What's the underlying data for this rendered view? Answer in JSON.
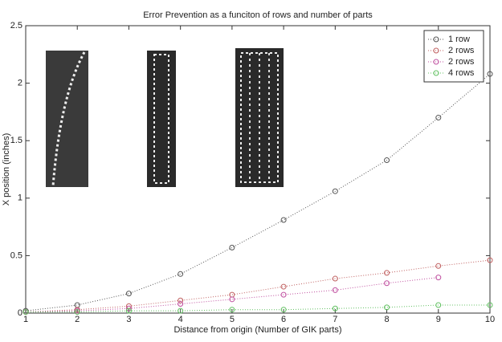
{
  "chart_data": {
    "type": "line",
    "title": "Error Prevention as a funciton of rows and number of parts",
    "xlabel": "Distance from origin (Number of GIK parts)",
    "ylabel": "X position (inches)",
    "x": [
      1,
      2,
      3,
      4,
      5,
      6,
      7,
      8,
      9,
      10
    ],
    "series": [
      {
        "name": "1 row",
        "color": "#555555",
        "values": [
          0.02,
          0.07,
          0.17,
          0.34,
          0.57,
          0.81,
          1.06,
          1.33,
          1.7,
          2.08
        ]
      },
      {
        "name": "2 rows",
        "color": "#c06060",
        "values": [
          0.01,
          0.03,
          0.06,
          0.11,
          0.16,
          0.23,
          0.3,
          0.35,
          0.41,
          0.46
        ]
      },
      {
        "name": "2 rows",
        "color": "#c050a0",
        "values": [
          0.01,
          0.02,
          0.04,
          0.08,
          0.12,
          0.16,
          0.2,
          0.26,
          0.31,
          null
        ]
      },
      {
        "name": "4 rows",
        "color": "#60c060",
        "values": [
          0.01,
          0.01,
          0.02,
          0.02,
          0.03,
          0.03,
          0.04,
          0.05,
          0.07,
          0.07
        ]
      }
    ],
    "xlim": [
      1,
      10
    ],
    "ylim": [
      0,
      2.5
    ],
    "xticks": [
      1,
      2,
      3,
      4,
      5,
      6,
      7,
      8,
      9,
      10
    ],
    "yticks": [
      0,
      0.5,
      1,
      1.5,
      2,
      2.5
    ],
    "grid": false,
    "legend": "upper right"
  }
}
